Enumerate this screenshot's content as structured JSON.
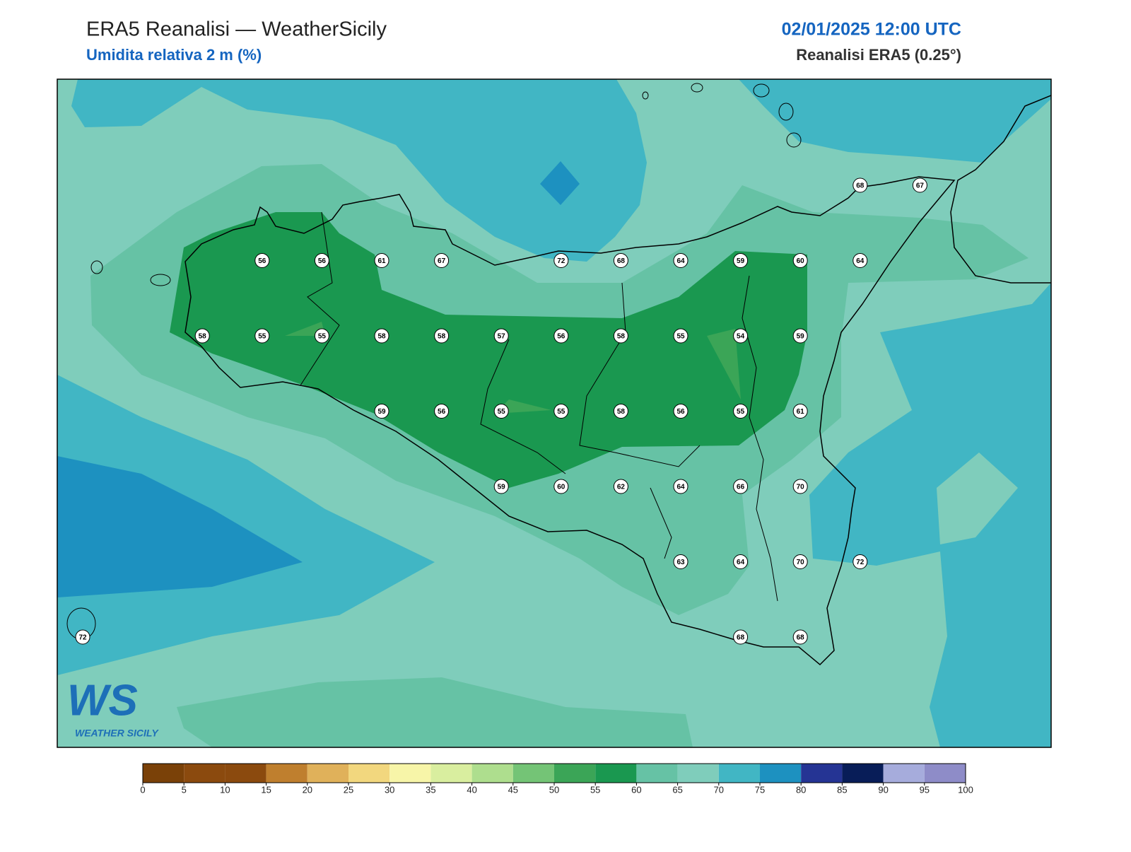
{
  "header": {
    "title": "ERA5 Reanalisi — WeatherSicily",
    "subtitle": "Umidita relativa 2 m (%)",
    "date": "02/01/2025 12:00 UTC",
    "source": "Reanalisi ERA5 (0.25°)"
  },
  "grid_labels": [
    [
      null,
      null,
      null,
      null,
      null,
      null,
      null,
      null,
      null,
      null,
      null,
      null,
      null,
      68,
      67
    ],
    [
      null,
      null,
      null,
      56,
      56,
      61,
      67,
      null,
      72,
      68,
      64,
      59,
      60,
      64,
      null
    ],
    [
      null,
      null,
      58,
      55,
      55,
      58,
      58,
      57,
      56,
      58,
      55,
      54,
      59,
      null,
      null
    ],
    [
      null,
      null,
      null,
      null,
      null,
      59,
      56,
      55,
      55,
      58,
      56,
      55,
      61,
      null,
      null
    ],
    [
      null,
      null,
      null,
      null,
      null,
      null,
      null,
      59,
      60,
      62,
      64,
      66,
      70,
      null,
      null
    ],
    [
      null,
      null,
      null,
      null,
      null,
      null,
      null,
      null,
      null,
      null,
      63,
      64,
      70,
      72,
      null
    ],
    [
      72,
      null,
      null,
      null,
      null,
      null,
      null,
      null,
      null,
      null,
      null,
      68,
      68,
      null,
      null
    ]
  ],
  "colorbar": {
    "ticks": [
      0,
      5,
      10,
      15,
      20,
      25,
      30,
      35,
      40,
      45,
      50,
      55,
      60,
      65,
      70,
      75,
      80,
      85,
      90,
      95,
      100
    ],
    "colors": [
      "#7a4108",
      "#8b4a0e",
      "#8b4a0e",
      "#bf7f2e",
      "#e0b15a",
      "#f2d77e",
      "#f7f5a8",
      "#d9ee9f",
      "#aede8e",
      "#74c476",
      "#3ba557",
      "#1a9850",
      "#66c2a5",
      "#7fcdbb",
      "#41b6c4",
      "#1d91c0",
      "#253494",
      "#081d58",
      "#a6acdc",
      "#8e8cc8"
    ]
  },
  "logo": {
    "mark": "WS",
    "text": "WEATHER SICILY"
  }
}
